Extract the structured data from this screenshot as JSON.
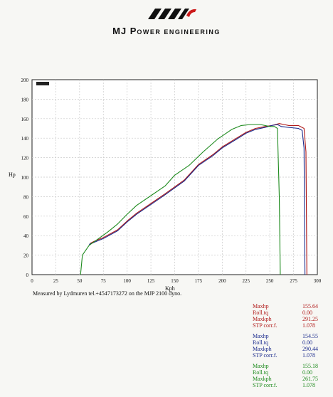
{
  "brand": {
    "first": "MJ",
    "p": "P",
    "rest": "OWER ENGINEERING"
  },
  "caption": "Measured by Lydmuren tel.+4547173272 on the MJP 2100 dyno.",
  "colors": {
    "red": "#b01818",
    "blue": "#1a2a8c",
    "green": "#1d8a1d",
    "grid": "#c9c9c9"
  },
  "chart_data": {
    "type": "line",
    "title": "",
    "xlabel": "Kph",
    "ylabel": "Hp",
    "xlim": [
      0,
      300
    ],
    "ylim": [
      0,
      200
    ],
    "x_ticks": [
      0,
      25,
      50,
      75,
      100,
      125,
      150,
      175,
      200,
      225,
      250,
      275,
      300
    ],
    "y_ticks": [
      0,
      20,
      40,
      60,
      80,
      100,
      120,
      140,
      160,
      180,
      200
    ],
    "grid": true,
    "series": [
      {
        "color": "red",
        "points": [
          [
            61,
            32
          ],
          [
            65,
            34
          ],
          [
            75,
            38
          ],
          [
            90,
            46
          ],
          [
            100,
            55
          ],
          [
            110,
            63
          ],
          [
            125,
            73
          ],
          [
            140,
            83
          ],
          [
            150,
            90
          ],
          [
            160,
            97
          ],
          [
            175,
            113
          ],
          [
            190,
            123
          ],
          [
            200,
            131
          ],
          [
            215,
            140
          ],
          [
            225,
            146
          ],
          [
            235,
            150
          ],
          [
            245,
            152
          ],
          [
            252,
            153
          ],
          [
            260,
            155
          ],
          [
            265,
            154
          ],
          [
            270,
            153
          ],
          [
            280,
            153
          ],
          [
            286,
            150
          ],
          [
            288,
            126
          ],
          [
            289,
            0
          ]
        ]
      },
      {
        "color": "blue",
        "points": [
          [
            60,
            31
          ],
          [
            65,
            33
          ],
          [
            75,
            37
          ],
          [
            90,
            45
          ],
          [
            100,
            54
          ],
          [
            110,
            62
          ],
          [
            125,
            72
          ],
          [
            140,
            82
          ],
          [
            150,
            89
          ],
          [
            160,
            96
          ],
          [
            175,
            112
          ],
          [
            190,
            122
          ],
          [
            200,
            130
          ],
          [
            215,
            139
          ],
          [
            225,
            145
          ],
          [
            235,
            149
          ],
          [
            245,
            151
          ],
          [
            252,
            153
          ],
          [
            258,
            154
          ],
          [
            262,
            152
          ],
          [
            270,
            151
          ],
          [
            280,
            150
          ],
          [
            284,
            148
          ],
          [
            286,
            130
          ],
          [
            287,
            0
          ]
        ]
      },
      {
        "color": "green",
        "points": [
          [
            51,
            0
          ],
          [
            53,
            20
          ],
          [
            60,
            30
          ],
          [
            70,
            37
          ],
          [
            80,
            44
          ],
          [
            90,
            52
          ],
          [
            100,
            62
          ],
          [
            110,
            71
          ],
          [
            125,
            81
          ],
          [
            140,
            91
          ],
          [
            150,
            102
          ],
          [
            165,
            112
          ],
          [
            180,
            126
          ],
          [
            195,
            139
          ],
          [
            210,
            149
          ],
          [
            220,
            153
          ],
          [
            230,
            154
          ],
          [
            240,
            154
          ],
          [
            250,
            152
          ],
          [
            255,
            152
          ],
          [
            258,
            150
          ],
          [
            260,
            80
          ],
          [
            261,
            0
          ]
        ]
      }
    ]
  },
  "stats": [
    {
      "color": "red",
      "rows": [
        {
          "label": "Maxhp",
          "value": "155.64"
        },
        {
          "label": "Roll.tq",
          "value": "0.00"
        },
        {
          "label": "Maxkph",
          "value": "291.25"
        },
        {
          "label": "STP corr.f.",
          "value": "1.078"
        }
      ]
    },
    {
      "color": "blue",
      "rows": [
        {
          "label": "Maxhp",
          "value": "154.55"
        },
        {
          "label": "Roll.tq",
          "value": "0.00"
        },
        {
          "label": "Maxkph",
          "value": "290.44"
        },
        {
          "label": "STP corr.f.",
          "value": "1.078"
        }
      ]
    },
    {
      "color": "green",
      "rows": [
        {
          "label": "Maxhp",
          "value": "155.18"
        },
        {
          "label": "Roll.tq",
          "value": "0.00"
        },
        {
          "label": "Maxkph",
          "value": "261.75"
        },
        {
          "label": "STP corr.f.",
          "value": "1.078"
        }
      ]
    }
  ]
}
